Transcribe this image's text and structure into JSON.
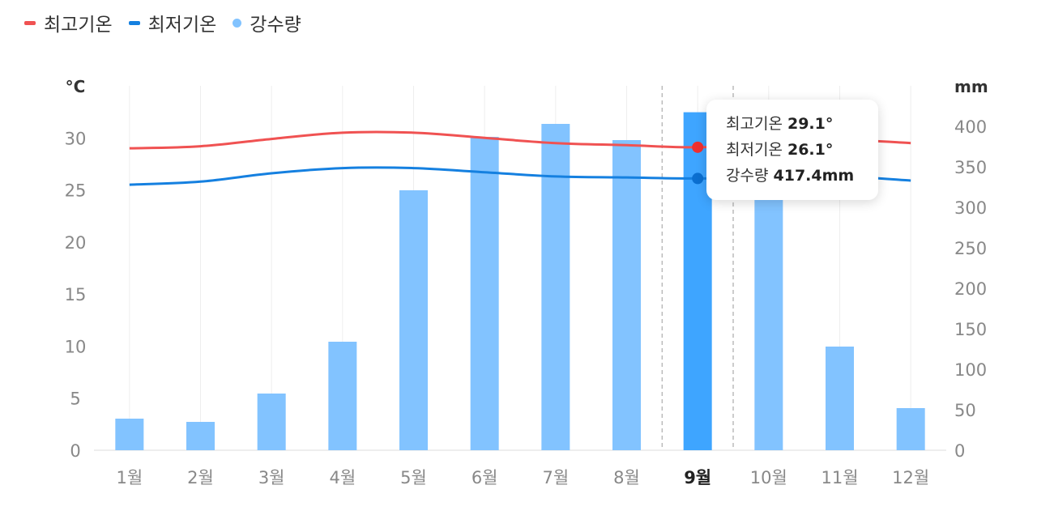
{
  "legend": {
    "high_label": "최고기온",
    "low_label": "최저기온",
    "rain_label": "강수량"
  },
  "colors": {
    "high": "#f05252",
    "low": "#1580e0",
    "rain": "#82c3ff",
    "rain_selected": "#3ea5ff",
    "grid": "#eeeeee",
    "axis_text": "#888888"
  },
  "tooltip": {
    "high_label": "최고기온",
    "high_value": "29.1°",
    "low_label": "최저기온",
    "low_value": "26.1°",
    "rain_label": "강수량",
    "rain_value": "417.4mm"
  },
  "chart_data": {
    "type": "bar",
    "categories": [
      "1월",
      "2월",
      "3월",
      "4월",
      "5월",
      "6월",
      "7월",
      "8월",
      "9월",
      "10월",
      "11월",
      "12월"
    ],
    "selected_index": 8,
    "series": [
      {
        "name": "강수량",
        "type": "bar",
        "axis": "right",
        "values": [
          39,
          35,
          70,
          134,
          321,
          387,
          403,
          383,
          417.4,
          316,
          128,
          52
        ]
      },
      {
        "name": "최고기온",
        "type": "line",
        "axis": "left",
        "values": [
          29.0,
          29.2,
          29.9,
          30.5,
          30.5,
          30.0,
          29.5,
          29.3,
          29.1,
          29.4,
          29.8,
          29.5
        ]
      },
      {
        "name": "최저기온",
        "type": "line",
        "axis": "left",
        "values": [
          25.5,
          25.8,
          26.6,
          27.1,
          27.1,
          26.7,
          26.3,
          26.2,
          26.1,
          26.2,
          26.3,
          25.9
        ]
      }
    ],
    "left_axis": {
      "label": "°C",
      "ticks": [
        "0",
        "5",
        "10",
        "15",
        "20",
        "25",
        "30"
      ],
      "range": [
        0,
        35
      ]
    },
    "right_axis": {
      "label": "mm",
      "ticks": [
        "0",
        "50",
        "100",
        "150",
        "200",
        "250",
        "300",
        "350",
        "400"
      ],
      "range": [
        0,
        450
      ]
    },
    "grid": true,
    "legend_position": "top-left"
  }
}
